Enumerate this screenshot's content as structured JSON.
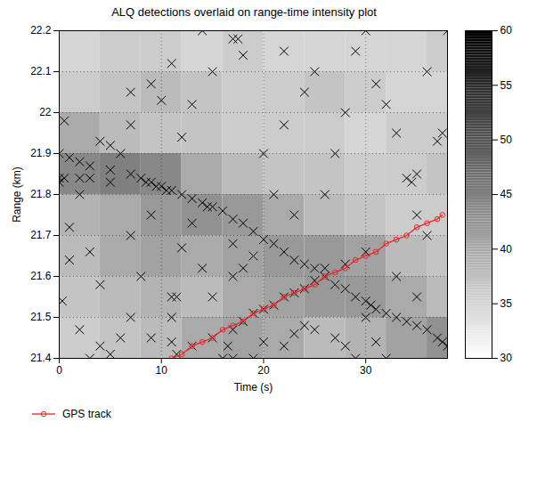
{
  "chart_data": {
    "type": "scatter",
    "title": "ALQ detections overlaid on range-time intensity plot",
    "x_label": "Time (s)",
    "y_label": "Range (km)",
    "xlim": [
      0,
      38
    ],
    "ylim": [
      21.4,
      22.2
    ],
    "xticks": [
      0,
      10,
      20,
      30
    ],
    "yticks": [
      21.4,
      21.5,
      21.6,
      21.7,
      21.8,
      21.9,
      22,
      22.1,
      22.2
    ],
    "grid": true,
    "legend": "bottom",
    "series": [
      {
        "type": "scatter",
        "marker": "x",
        "color": "#000000",
        "x": [
          0,
          1,
          2,
          3,
          5,
          7,
          8,
          8.5,
          9,
          9.5,
          10,
          10.5,
          11,
          12,
          13,
          14,
          14.5,
          15,
          16,
          17,
          18,
          19,
          20,
          21,
          22,
          23,
          24,
          25,
          26,
          27,
          28,
          29,
          30,
          30.5,
          31,
          32,
          33,
          34,
          35,
          36,
          37,
          37.5,
          38,
          11.5,
          13,
          15,
          17,
          18,
          19,
          20,
          21,
          22,
          23,
          24,
          25,
          26,
          28,
          30,
          0,
          0,
          0.5,
          2,
          3,
          5,
          0.5,
          1,
          0.3,
          2,
          3,
          4,
          5,
          6,
          4,
          4,
          5,
          6,
          7,
          7,
          9,
          10,
          11,
          14,
          15,
          17,
          17.5,
          18,
          13,
          12,
          11,
          11.5,
          11,
          11,
          9,
          7,
          8,
          12,
          14,
          13,
          16,
          17,
          16.5,
          15,
          17,
          19,
          20,
          22,
          23,
          24,
          25,
          27,
          28,
          29,
          30,
          31,
          26,
          27,
          28,
          29,
          30,
          31,
          32,
          33,
          34,
          34.5,
          35,
          35,
          36,
          37,
          37.5,
          38,
          36,
          24,
          22,
          20,
          21,
          23,
          19,
          18,
          17,
          9,
          7,
          3,
          1,
          2,
          22,
          25,
          33,
          32,
          35
        ],
        "y": [
          21.9,
          21.89,
          21.88,
          21.87,
          21.86,
          21.85,
          21.84,
          21.83,
          21.83,
          21.82,
          21.82,
          21.81,
          21.81,
          21.8,
          21.79,
          21.78,
          21.77,
          21.77,
          21.76,
          21.74,
          21.73,
          21.71,
          21.69,
          21.68,
          21.66,
          21.64,
          21.63,
          21.62,
          21.6,
          21.58,
          21.57,
          21.55,
          21.54,
          21.53,
          21.52,
          21.51,
          21.5,
          21.49,
          21.48,
          21.47,
          21.45,
          21.44,
          21.43,
          21.41,
          21.43,
          21.45,
          21.47,
          21.49,
          21.51,
          21.52,
          21.53,
          21.55,
          21.56,
          21.57,
          21.59,
          21.62,
          21.63,
          21.66,
          21.84,
          21.83,
          21.84,
          21.84,
          21.84,
          21.83,
          21.98,
          21.64,
          21.54,
          21.47,
          21.4,
          21.43,
          21.41,
          21.45,
          21.58,
          21.93,
          21.92,
          21.9,
          21.97,
          22.05,
          22.07,
          22.03,
          22.12,
          22.2,
          22.1,
          22.18,
          22.18,
          22.14,
          22.02,
          21.94,
          21.55,
          21.55,
          21.5,
          21.44,
          21.45,
          21.5,
          21.6,
          21.67,
          21.62,
          21.73,
          21.4,
          21.4,
          21.43,
          21.55,
          21.6,
          21.4,
          21.44,
          21.43,
          21.46,
          21.48,
          21.47,
          21.45,
          21.43,
          21.4,
          21.5,
          21.44,
          21.8,
          21.9,
          22.0,
          22.15,
          22.2,
          22.07,
          22.02,
          21.95,
          21.84,
          21.83,
          21.85,
          21.75,
          21.7,
          21.93,
          21.95,
          22.2,
          22.1,
          22.05,
          21.97,
          21.9,
          21.8,
          21.75,
          21.65,
          21.62,
          21.68,
          21.75,
          21.7,
          21.66,
          21.72,
          21.8,
          22.15,
          22.1,
          21.6,
          21.4,
          21.55
        ]
      },
      {
        "name": "GPS track",
        "type": "line",
        "marker": "o",
        "line_style": "solid",
        "color": "#e8262a",
        "x": [
          11,
          12,
          13,
          14,
          15,
          16,
          17,
          18,
          19,
          20,
          21,
          22,
          23,
          24,
          25,
          26,
          27,
          28,
          29,
          30,
          31,
          32,
          33,
          34,
          35,
          36,
          37,
          37.5
        ],
        "y": [
          21.4,
          21.41,
          21.43,
          21.44,
          21.45,
          21.47,
          21.48,
          21.49,
          21.51,
          21.52,
          21.53,
          21.55,
          21.56,
          21.57,
          21.58,
          21.6,
          21.61,
          21.62,
          21.64,
          21.65,
          21.66,
          21.68,
          21.69,
          21.7,
          21.72,
          21.73,
          21.74,
          21.75
        ]
      }
    ],
    "intensity": {
      "t_edges": [
        0,
        4,
        8,
        12,
        16,
        20,
        24,
        28,
        32,
        36,
        38
      ],
      "r_edges": [
        21.4,
        21.5,
        21.6,
        21.7,
        21.8,
        21.9,
        22.0,
        22.1,
        22.2
      ],
      "values": [
        [
          36,
          37,
          38,
          40,
          41,
          40,
          38,
          39,
          41,
          43
        ],
        [
          37,
          38,
          39,
          38,
          40,
          41,
          42,
          42,
          40,
          38
        ],
        [
          38,
          40,
          41,
          40,
          41,
          42,
          42,
          41,
          38,
          37
        ],
        [
          39,
          40,
          42,
          43,
          42,
          40,
          38,
          37,
          36,
          36
        ],
        [
          44,
          45,
          44,
          40,
          38,
          37,
          37,
          36,
          36,
          37
        ],
        [
          40,
          38,
          37,
          37,
          36,
          36,
          36,
          35,
          36,
          36
        ],
        [
          36,
          37,
          38,
          37,
          36,
          36,
          37,
          36,
          35,
          35
        ],
        [
          35,
          36,
          36,
          35,
          36,
          35,
          35,
          35,
          35,
          36
        ]
      ],
      "range": [
        30,
        60
      ],
      "ticks": [
        30,
        35,
        40,
        45,
        50,
        55,
        60
      ]
    }
  }
}
